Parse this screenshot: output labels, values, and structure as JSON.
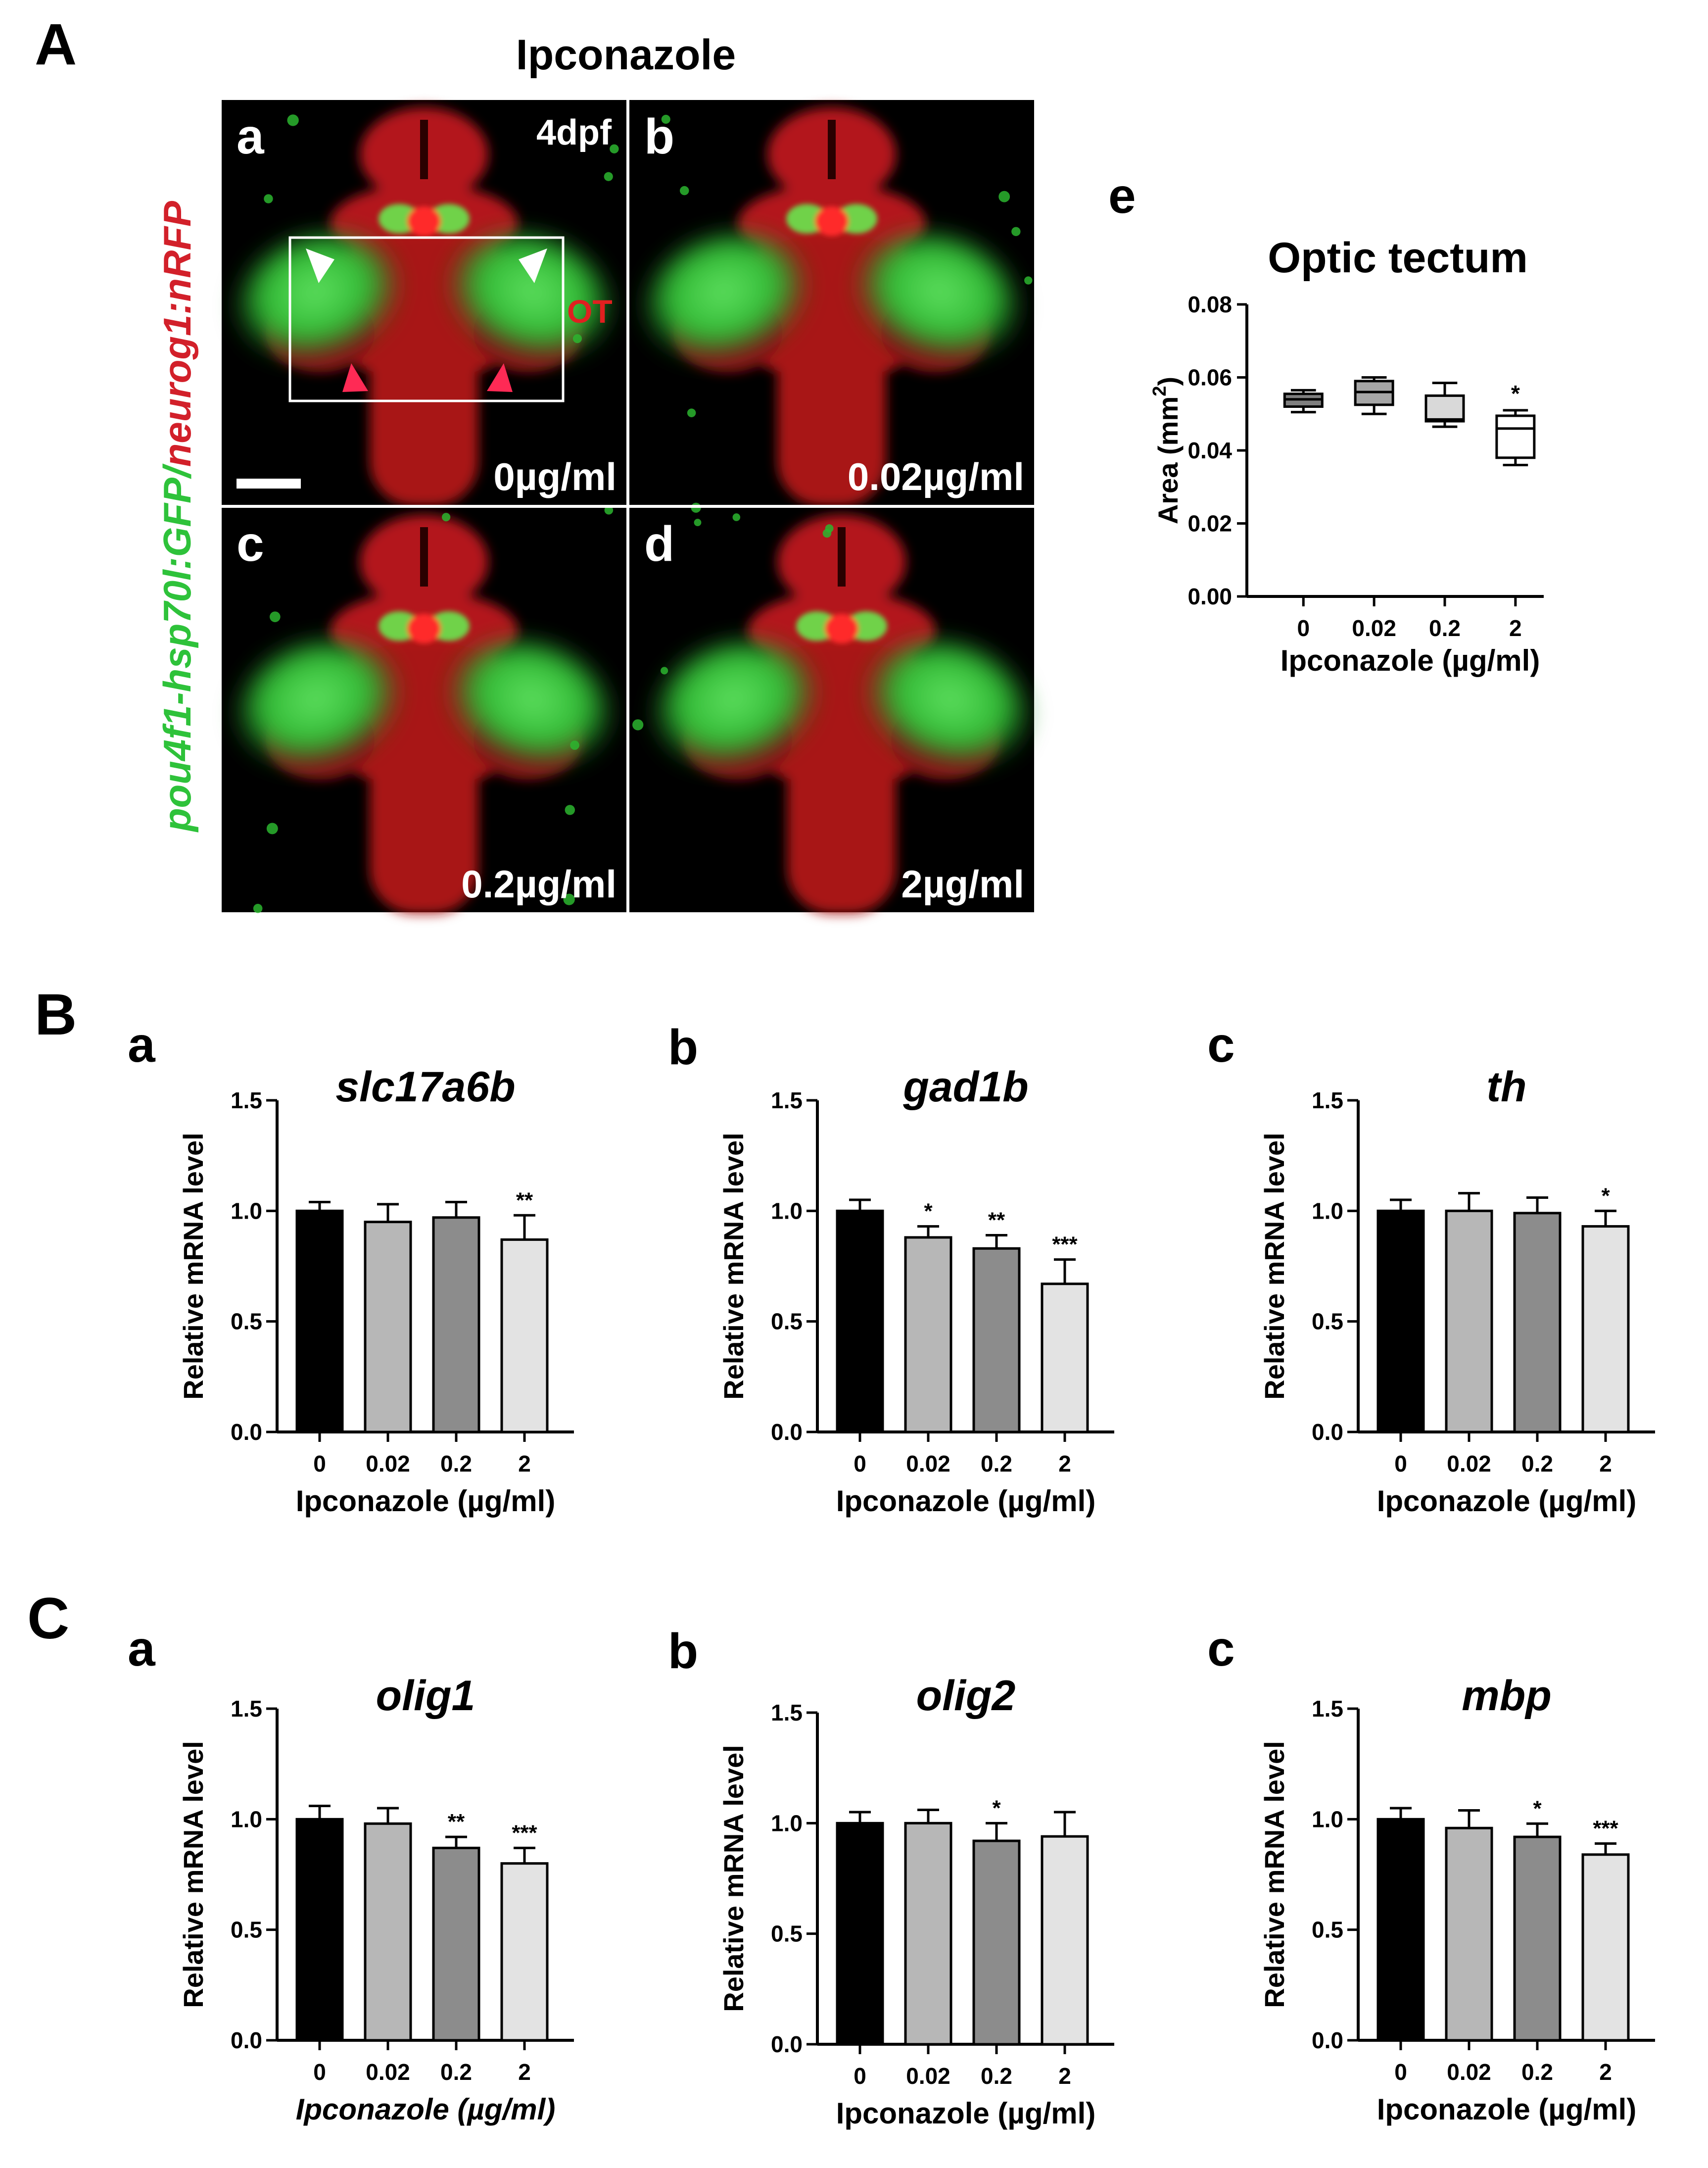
{
  "panels": {
    "A": {
      "letter": "A",
      "title": "Ipconazole"
    },
    "B": {
      "letter": "B"
    },
    "C": {
      "letter": "C"
    }
  },
  "micrographs": {
    "y_label_green": "pou4f1-hsp70l:GFP",
    "y_label_sep": "/",
    "y_label_red": "neurog1:nRFP",
    "stage": "4dpf",
    "region_label": "OT",
    "tiles": [
      {
        "letter": "a",
        "dose": "0µg/ml"
      },
      {
        "letter": "b",
        "dose": "0.02µg/ml"
      },
      {
        "letter": "c",
        "dose": "0.2µg/ml"
      },
      {
        "letter": "d",
        "dose": "2µg/ml"
      }
    ],
    "colors": {
      "green": "#2ec23a",
      "red": "#d2202a",
      "background": "#000000"
    }
  },
  "chart_data": [
    {
      "id": "Ae",
      "letter": "e",
      "type": "box",
      "title": "Optic tectum",
      "xlabel": "Ipconazole (µg/ml)",
      "ylabel": "Area (mm",
      "ylabel_sup": "2",
      "ylabel_end": ")",
      "ylim": [
        0,
        0.08
      ],
      "yticks": [
        "0.00",
        "0.02",
        "0.04",
        "0.06",
        "0.08"
      ],
      "categories": [
        "0",
        "0.02",
        "0.2",
        "2"
      ],
      "boxes": [
        {
          "min": 0.0505,
          "q1": 0.052,
          "median": 0.054,
          "q3": 0.0555,
          "max": 0.0565,
          "fill": "#7f7f7f",
          "sig": ""
        },
        {
          "min": 0.05,
          "q1": 0.0525,
          "median": 0.056,
          "q3": 0.059,
          "max": 0.06,
          "fill": "#a6a6a6",
          "sig": ""
        },
        {
          "min": 0.0465,
          "q1": 0.048,
          "median": 0.0485,
          "q3": 0.055,
          "max": 0.0585,
          "fill": "#d9d9d9",
          "sig": ""
        },
        {
          "min": 0.036,
          "q1": 0.038,
          "median": 0.046,
          "q3": 0.0495,
          "max": 0.051,
          "fill": "#ffffff",
          "sig": "*"
        }
      ]
    },
    {
      "id": "Ba",
      "letter": "a",
      "type": "bar",
      "title": "slc17a6b",
      "xlabel": "Ipconazole (µg/ml)",
      "ylabel": "Relative mRNA level",
      "ylim": [
        0,
        1.5
      ],
      "yticks": [
        "0.0",
        "0.5",
        "1.0",
        "1.5"
      ],
      "categories": [
        "0",
        "0.02",
        "0.2",
        "2"
      ],
      "values": [
        1.0,
        0.95,
        0.97,
        0.87
      ],
      "errors": [
        0.04,
        0.08,
        0.07,
        0.11
      ],
      "sig": [
        "",
        "",
        "",
        "**"
      ]
    },
    {
      "id": "Bb",
      "letter": "b",
      "type": "bar",
      "title": "gad1b",
      "xlabel": "Ipconazole (µg/ml)",
      "ylabel": "Relative mRNA level",
      "ylim": [
        0,
        1.5
      ],
      "yticks": [
        "0.0",
        "0.5",
        "1.0",
        "1.5"
      ],
      "categories": [
        "0",
        "0.02",
        "0.2",
        "2"
      ],
      "values": [
        1.0,
        0.88,
        0.83,
        0.67
      ],
      "errors": [
        0.05,
        0.05,
        0.06,
        0.11
      ],
      "sig": [
        "",
        "*",
        "**",
        "***"
      ]
    },
    {
      "id": "Bc",
      "letter": "c",
      "type": "bar",
      "title": "th",
      "xlabel": "Ipconazole (µg/ml)",
      "ylabel": "Relative mRNA level",
      "ylim": [
        0,
        1.5
      ],
      "yticks": [
        "0.0",
        "0.5",
        "1.0",
        "1.5"
      ],
      "categories": [
        "0",
        "0.02",
        "0.2",
        "2"
      ],
      "values": [
        1.0,
        1.0,
        0.99,
        0.93
      ],
      "errors": [
        0.05,
        0.08,
        0.07,
        0.07
      ],
      "sig": [
        "",
        "",
        "",
        "*"
      ]
    },
    {
      "id": "Ca",
      "letter": "a",
      "type": "bar",
      "title": "olig1",
      "xlabel": "Ipconazole (µg/ml)",
      "xlabel_italic": true,
      "ylabel": "Relative mRNA level",
      "ylim": [
        0,
        1.5
      ],
      "yticks": [
        "0.0",
        "0.5",
        "1.0",
        "1.5"
      ],
      "categories": [
        "0",
        "0.02",
        "0.2",
        "2"
      ],
      "values": [
        1.0,
        0.98,
        0.87,
        0.8
      ],
      "errors": [
        0.06,
        0.07,
        0.05,
        0.07
      ],
      "sig": [
        "",
        "",
        "**",
        "***"
      ]
    },
    {
      "id": "Cb",
      "letter": "b",
      "type": "bar",
      "title": "olig2",
      "xlabel": "Ipconazole (µg/ml)",
      "ylabel": "Relative mRNA level",
      "ylim": [
        0,
        1.5
      ],
      "yticks": [
        "0.0",
        "0.5",
        "1.0",
        "1.5"
      ],
      "categories": [
        "0",
        "0.02",
        "0.2",
        "2"
      ],
      "values": [
        1.0,
        1.0,
        0.92,
        0.94
      ],
      "errors": [
        0.05,
        0.06,
        0.08,
        0.11
      ],
      "sig": [
        "",
        "",
        "*",
        ""
      ]
    },
    {
      "id": "Cc",
      "letter": "c",
      "type": "bar",
      "title": "mbp",
      "xlabel": "Ipconazole (µg/ml)",
      "ylabel": "Relative mRNA level",
      "ylim": [
        0,
        1.5
      ],
      "yticks": [
        "0.0",
        "0.5",
        "1.0",
        "1.5"
      ],
      "categories": [
        "0",
        "0.02",
        "0.2",
        "2"
      ],
      "values": [
        1.0,
        0.96,
        0.92,
        0.84
      ],
      "errors": [
        0.05,
        0.08,
        0.06,
        0.05
      ],
      "sig": [
        "",
        "",
        "*",
        "***"
      ]
    }
  ],
  "bar_colors": [
    "#000000",
    "#b7b7b7",
    "#8c8c8c",
    "#e3e3e3"
  ]
}
